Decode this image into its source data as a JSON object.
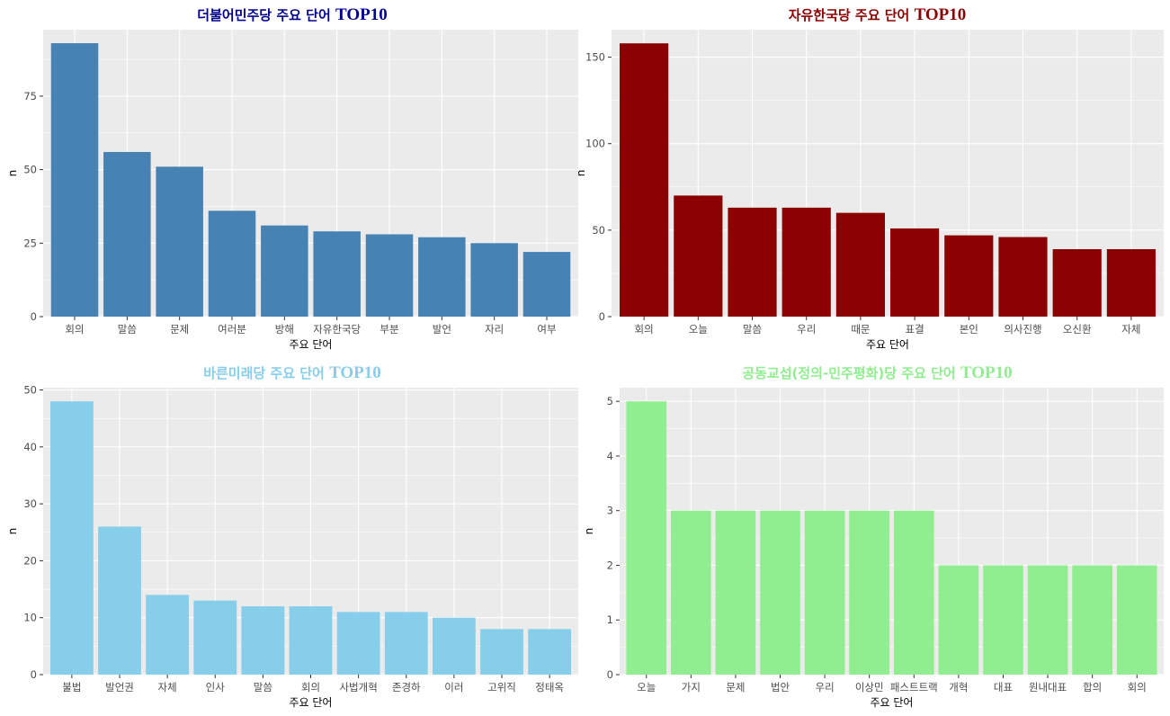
{
  "chart_data": [
    {
      "type": "bar",
      "title_ko": "더불어민주당 주요 단어",
      "title_en": "TOP10",
      "title_color": "#00008B",
      "bar_color": "#4682B4",
      "xlabel": "주요 단어",
      "ylabel": "n",
      "categories": [
        "회의",
        "말씀",
        "문제",
        "여러분",
        "방해",
        "자유한국당",
        "부분",
        "발언",
        "자리",
        "여부"
      ],
      "values": [
        93,
        56,
        51,
        36,
        31,
        29,
        28,
        27,
        25,
        22
      ],
      "yticks": [
        0,
        25,
        50,
        75
      ],
      "ylim": [
        0,
        97.6
      ],
      "grid": true
    },
    {
      "type": "bar",
      "title_ko": "자유한국당 주요 단어",
      "title_en": "TOP10",
      "title_color": "#8B0000",
      "bar_color": "#8B0000",
      "xlabel": "주요 단어",
      "ylabel": "n",
      "categories": [
        "회의",
        "오늘",
        "말씀",
        "우리",
        "때문",
        "표결",
        "본인",
        "의사진행",
        "오신환",
        "자체"
      ],
      "values": [
        158,
        70,
        63,
        63,
        60,
        51,
        47,
        46,
        39,
        39
      ],
      "yticks": [
        0,
        50,
        100,
        150
      ],
      "ylim": [
        0,
        165.9
      ],
      "grid": true
    },
    {
      "type": "bar",
      "title_ko": "바른미래당 주요 단어",
      "title_en": "TOP10",
      "title_color": "#87CEEB",
      "bar_color": "#87CEEB",
      "xlabel": "주요 단어",
      "ylabel": "n",
      "categories": [
        "불법",
        "발언권",
        "자체",
        "인사",
        "말씀",
        "회의",
        "사법개혁",
        "존경하",
        "이러",
        "고위직",
        "정태옥"
      ],
      "values": [
        48,
        26,
        14,
        13,
        12,
        12,
        11,
        11,
        10,
        8,
        8
      ],
      "yticks": [
        0,
        10,
        20,
        30,
        40,
        50
      ],
      "ylim": [
        0,
        50.4
      ],
      "grid": true
    },
    {
      "type": "bar",
      "title_ko": "공동교섭(정의-민주평화)당 주요 단어",
      "title_en": "TOP10",
      "title_color": "#90EE90",
      "bar_color": "#90EE90",
      "xlabel": "주요 단어",
      "ylabel": "n",
      "categories": [
        "오늘",
        "가지",
        "문제",
        "법안",
        "우리",
        "이상민",
        "패스트트랙",
        "개혁",
        "대표",
        "원내대표",
        "합의",
        "회의"
      ],
      "values": [
        5,
        3,
        3,
        3,
        3,
        3,
        3,
        2,
        2,
        2,
        2,
        2
      ],
      "yticks": [
        0,
        1,
        2,
        3,
        4,
        5
      ],
      "ylim": [
        0,
        5.25
      ],
      "grid": true
    }
  ]
}
